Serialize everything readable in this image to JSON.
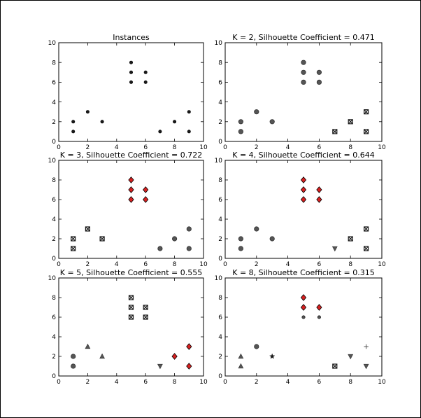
{
  "figure": {
    "charts": 6,
    "background": "#ffffff",
    "frame_color": "#000000"
  },
  "colors": {
    "black": "#1a1a1a",
    "gray": "#555555",
    "red": "#d62020"
  },
  "chart_data": [
    {
      "type": "scatter",
      "title": "Instances",
      "xlim": [
        0,
        10
      ],
      "ylim": [
        0,
        10
      ],
      "xticks": [
        "0",
        "2",
        "4",
        "6",
        "8",
        "10"
      ],
      "yticks": [
        "0",
        "2",
        "4",
        "6",
        "8",
        "10"
      ],
      "grid": false,
      "series": [
        {
          "marker": "dot",
          "color": "black",
          "points": [
            [
              1,
              1
            ],
            [
              1,
              2
            ],
            [
              2,
              3
            ],
            [
              3,
              2
            ],
            [
              5,
              6
            ],
            [
              5,
              7
            ],
            [
              5,
              8
            ],
            [
              6,
              6
            ],
            [
              6,
              7
            ],
            [
              7,
              1
            ],
            [
              8,
              2
            ],
            [
              9,
              1
            ],
            [
              9,
              3
            ]
          ]
        }
      ]
    },
    {
      "type": "scatter",
      "title": "K = 2, Silhouette Coefficient = 0.471",
      "xlim": [
        0,
        10
      ],
      "ylim": [
        0,
        10
      ],
      "xticks": [
        "0",
        "2",
        "4",
        "6",
        "8",
        "10"
      ],
      "yticks": [
        "0",
        "2",
        "4",
        "6",
        "8",
        "10"
      ],
      "grid": false,
      "series": [
        {
          "marker": "circle",
          "color": "gray",
          "points": [
            [
              1,
              1
            ],
            [
              1,
              2
            ],
            [
              2,
              3
            ],
            [
              3,
              2
            ],
            [
              5,
              6
            ],
            [
              5,
              7
            ],
            [
              5,
              8
            ],
            [
              6,
              6
            ],
            [
              6,
              7
            ]
          ]
        },
        {
          "marker": "xsquare",
          "color": "black",
          "points": [
            [
              7,
              1
            ],
            [
              8,
              2
            ],
            [
              9,
              1
            ],
            [
              9,
              3
            ]
          ]
        }
      ]
    },
    {
      "type": "scatter",
      "title": "K = 3, Silhouette Coefficient = 0.722",
      "xlim": [
        0,
        10
      ],
      "ylim": [
        0,
        10
      ],
      "xticks": [
        "0",
        "2",
        "4",
        "6",
        "8",
        "10"
      ],
      "yticks": [
        "0",
        "2",
        "4",
        "6",
        "8",
        "10"
      ],
      "grid": false,
      "series": [
        {
          "marker": "xsquare",
          "color": "black",
          "points": [
            [
              1,
              1
            ],
            [
              1,
              2
            ],
            [
              2,
              3
            ],
            [
              3,
              2
            ]
          ]
        },
        {
          "marker": "diamond",
          "color": "red",
          "points": [
            [
              5,
              6
            ],
            [
              5,
              7
            ],
            [
              5,
              8
            ],
            [
              6,
              6
            ],
            [
              6,
              7
            ]
          ]
        },
        {
          "marker": "circle",
          "color": "gray",
          "points": [
            [
              7,
              1
            ],
            [
              8,
              2
            ],
            [
              9,
              1
            ],
            [
              9,
              3
            ]
          ]
        }
      ]
    },
    {
      "type": "scatter",
      "title": "K = 4, Silhouette Coefficient = 0.644",
      "xlim": [
        0,
        10
      ],
      "ylim": [
        0,
        10
      ],
      "xticks": [
        "0",
        "2",
        "4",
        "6",
        "8",
        "10"
      ],
      "yticks": [
        "0",
        "2",
        "4",
        "6",
        "8",
        "10"
      ],
      "grid": false,
      "series": [
        {
          "marker": "circle",
          "color": "gray",
          "points": [
            [
              1,
              1
            ],
            [
              1,
              2
            ],
            [
              2,
              3
            ],
            [
              3,
              2
            ]
          ]
        },
        {
          "marker": "diamond",
          "color": "red",
          "points": [
            [
              5,
              6
            ],
            [
              5,
              7
            ],
            [
              5,
              8
            ],
            [
              6,
              6
            ],
            [
              6,
              7
            ]
          ]
        },
        {
          "marker": "triangle-down",
          "color": "gray",
          "points": [
            [
              7,
              1
            ]
          ]
        },
        {
          "marker": "xsquare",
          "color": "black",
          "points": [
            [
              8,
              2
            ],
            [
              9,
              1
            ],
            [
              9,
              3
            ]
          ]
        }
      ]
    },
    {
      "type": "scatter",
      "title": "K = 5, Silhouette Coefficient = 0.555",
      "xlim": [
        0,
        10
      ],
      "ylim": [
        0,
        10
      ],
      "xticks": [
        "0",
        "2",
        "4",
        "6",
        "8",
        "10"
      ],
      "yticks": [
        "0",
        "2",
        "4",
        "6",
        "8",
        "10"
      ],
      "grid": false,
      "series": [
        {
          "marker": "circle",
          "color": "gray",
          "points": [
            [
              1,
              1
            ],
            [
              1,
              2
            ]
          ]
        },
        {
          "marker": "triangle-up",
          "color": "gray",
          "points": [
            [
              2,
              3
            ],
            [
              3,
              2
            ]
          ]
        },
        {
          "marker": "xsquare",
          "color": "black",
          "points": [
            [
              5,
              6
            ],
            [
              5,
              7
            ],
            [
              5,
              8
            ],
            [
              6,
              6
            ],
            [
              6,
              7
            ]
          ]
        },
        {
          "marker": "triangle-down",
          "color": "gray",
          "points": [
            [
              7,
              1
            ]
          ]
        },
        {
          "marker": "diamond",
          "color": "red",
          "points": [
            [
              8,
              2
            ],
            [
              9,
              1
            ],
            [
              9,
              3
            ]
          ]
        }
      ]
    },
    {
      "type": "scatter",
      "title": "K = 8, Silhouette Coefficient = 0.315",
      "xlim": [
        0,
        10
      ],
      "ylim": [
        0,
        10
      ],
      "xticks": [
        "0",
        "2",
        "4",
        "6",
        "8",
        "10"
      ],
      "yticks": [
        "0",
        "2",
        "4",
        "6",
        "8",
        "10"
      ],
      "grid": false,
      "series": [
        {
          "marker": "triangle-up",
          "color": "gray",
          "points": [
            [
              1,
              1
            ],
            [
              1,
              2
            ]
          ]
        },
        {
          "marker": "circle",
          "color": "gray",
          "points": [
            [
              2,
              3
            ]
          ]
        },
        {
          "marker": "star",
          "color": "black",
          "points": [
            [
              3,
              2
            ]
          ]
        },
        {
          "marker": "dot",
          "color": "gray",
          "points": [
            [
              5,
              6
            ],
            [
              6,
              6
            ]
          ]
        },
        {
          "marker": "diamond",
          "color": "red",
          "points": [
            [
              5,
              7
            ],
            [
              5,
              8
            ],
            [
              6,
              7
            ]
          ]
        },
        {
          "marker": "xsquare",
          "color": "black",
          "points": [
            [
              7,
              1
            ]
          ]
        },
        {
          "marker": "triangle-down",
          "color": "gray",
          "points": [
            [
              8,
              2
            ],
            [
              9,
              1
            ]
          ]
        },
        {
          "marker": "plus",
          "color": "gray",
          "points": [
            [
              9,
              3
            ]
          ]
        }
      ]
    }
  ]
}
